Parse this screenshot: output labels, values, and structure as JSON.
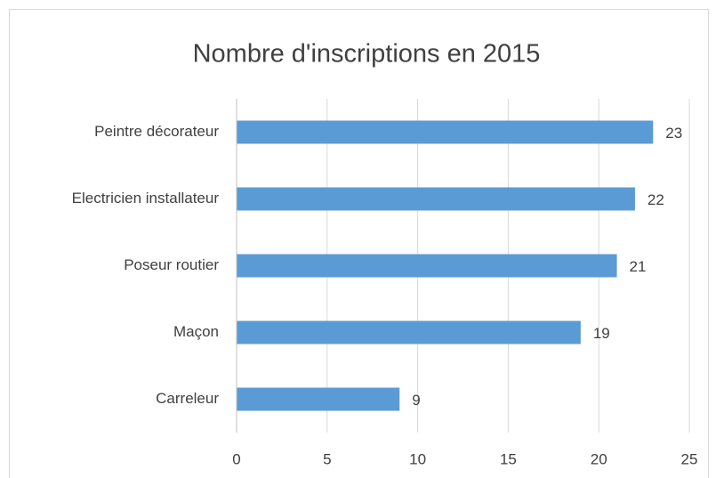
{
  "chart_data": {
    "type": "bar",
    "orientation": "horizontal",
    "title": "Nombre d'inscriptions en 2015",
    "categories": [
      "Peintre décorateur",
      "Electricien installateur",
      "Poseur routier",
      "Maçon",
      "Carreleur"
    ],
    "values": [
      23,
      22,
      21,
      19,
      9
    ],
    "color": "#5b9bd5",
    "xlim": [
      0,
      25
    ],
    "xticks": [
      0,
      5,
      10,
      15,
      20,
      25
    ],
    "grid": true
  }
}
